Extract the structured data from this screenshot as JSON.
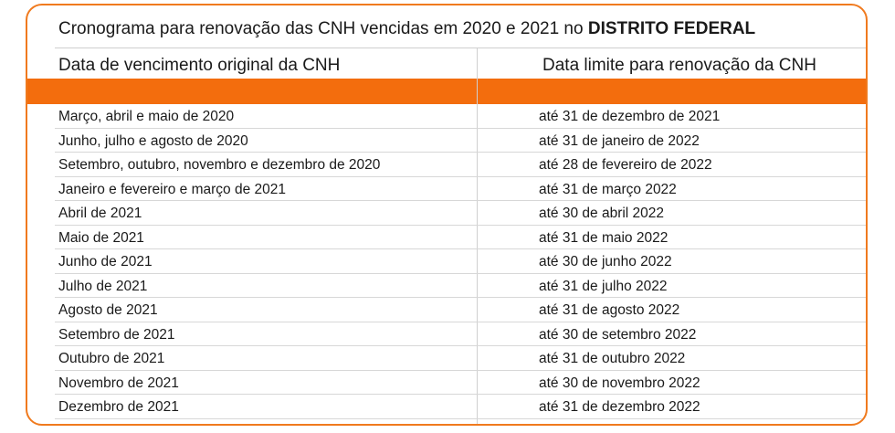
{
  "title": {
    "prefix": "Cronograma para renovação das CNH vencidas em 2020 e 2021 no ",
    "emphasis": "DISTRITO FEDERAL"
  },
  "columns": {
    "left": "Data de vencimento original da CNH",
    "right": "Data limite para renovação da CNH"
  },
  "colors": {
    "accent": "#f36d0d",
    "border": "#f07a1e"
  },
  "rows": [
    {
      "original": "Março, abril e maio de 2020",
      "limit": "até 31 de dezembro de 2021"
    },
    {
      "original": "Junho, julho e agosto de 2020",
      "limit": "até 31 de janeiro de 2022"
    },
    {
      "original": "Setembro, outubro, novembro e dezembro de 2020",
      "limit": "até 28 de fevereiro de 2022"
    },
    {
      "original": "Janeiro e fevereiro e março de 2021",
      "limit": "até 31 de março 2022"
    },
    {
      "original": "Abril de 2021",
      "limit": "até 30 de abril 2022"
    },
    {
      "original": "Maio de 2021",
      "limit": "até 31 de maio 2022"
    },
    {
      "original": "Junho de 2021",
      "limit": "até 30 de junho 2022"
    },
    {
      "original": "Julho de 2021",
      "limit": "até 31 de julho 2022"
    },
    {
      "original": "Agosto de 2021",
      "limit": "até 31 de agosto 2022"
    },
    {
      "original": "Setembro de 2021",
      "limit": "até 30 de setembro 2022"
    },
    {
      "original": "Outubro de 2021",
      "limit": "até 31 de outubro 2022"
    },
    {
      "original": "Novembro de 2021",
      "limit": "até 30 de novembro 2022"
    },
    {
      "original": "Dezembro de 2021",
      "limit": "até 31 de dezembro 2022"
    }
  ]
}
